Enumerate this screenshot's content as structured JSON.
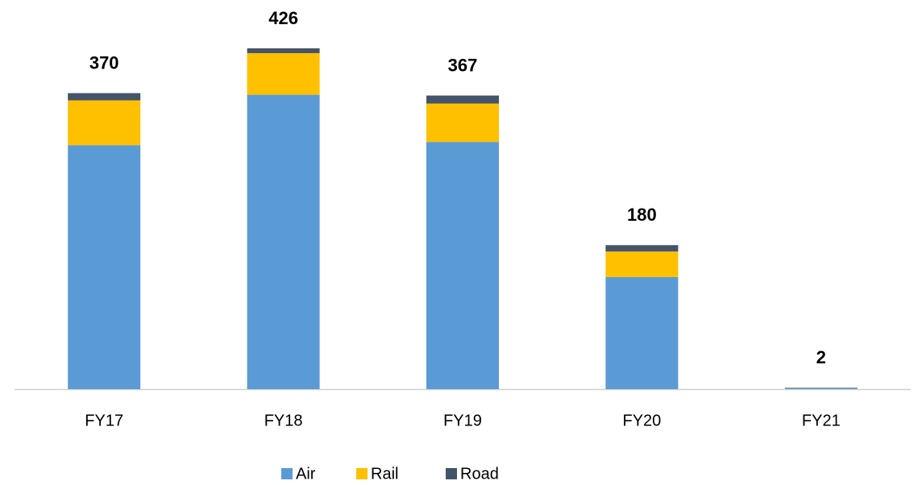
{
  "chart_data": {
    "type": "stacked_bar",
    "categories": [
      "FY17",
      "FY18",
      "FY19",
      "FY20",
      "FY21"
    ],
    "series": [
      {
        "name": "Air",
        "color": "#5b9bd5",
        "values": [
          305,
          368,
          309,
          140,
          1.5
        ]
      },
      {
        "name": "Rail",
        "color": "#ffc000",
        "values": [
          56,
          52,
          48,
          32,
          0.3
        ]
      },
      {
        "name": "Road",
        "color": "#44546a",
        "values": [
          9,
          6,
          10,
          8,
          0.2
        ]
      }
    ],
    "totals": [
      370,
      426,
      367,
      180,
      2
    ]
  }
}
